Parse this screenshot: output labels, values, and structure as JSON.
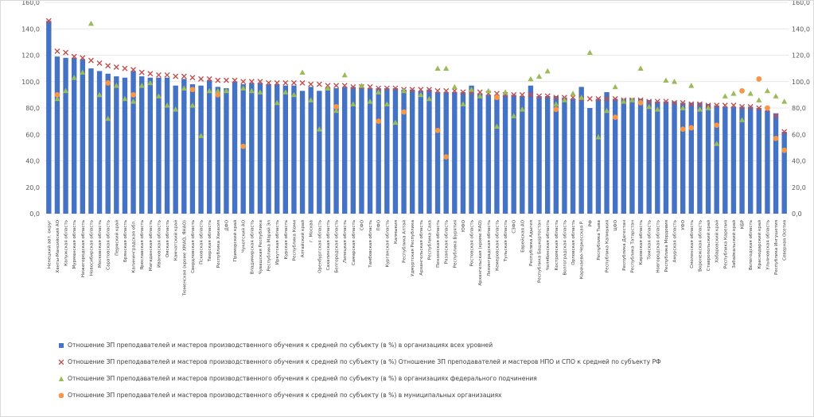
{
  "chart_data": {
    "type": "bar",
    "categories": [
      "Ненецкий авт. округ",
      "Ханты-Мансийский АО",
      "Калужская область",
      "Мурманская область",
      "Нижегородская область",
      "Новосибирская область",
      "Московская область",
      "Саратовская область",
      "Пермский край",
      "Брянская область",
      "Калининградская обл.",
      "Ярославская область",
      "Магаданская область",
      "Ивановская область",
      "Омская область",
      "Камчатский край",
      "Тюменская (кроме ХМАО, ЯНАО)",
      "Свердловская область",
      "Псковская область",
      "Тверская область",
      "Республика Хакасия",
      "ДФО",
      "Приморский край",
      "Чукотский АО",
      "Владимирская область",
      "Чувашская Республика",
      "Республика Марий Эл",
      "Иркутская область",
      "Курская область",
      "Республика Коми",
      "Алтайский край",
      "г. Москва",
      "Оренбургская область",
      "Сахалинская область",
      "Белгородская область",
      "Липецкая область",
      "Самарская область",
      "СФО",
      "Тамбовская область",
      "ПФО",
      "Курганская область",
      "Калмыкия",
      "Республика Алтай",
      "Удмуртская Республика",
      "Архангельская область",
      "Республика Саха",
      "Пензенская область",
      "Рязанская область",
      "Республика Бурятия",
      "ЮФО",
      "Ростовская область",
      "Архангельская (кроме НАО)",
      "Ленинградская область",
      "Кемеровская область",
      "Тульская область",
      "СЗФО",
      "Еврейская АО",
      "Республика Адыгея",
      "Республика Башкортостан",
      "Челябинская область",
      "Костромская область",
      "Волгоградская область",
      "Орловская область",
      "Карачаево-Черкесская Р.",
      "РФ",
      "Республика Тыва",
      "Республика Калмыкия",
      "ЦФО",
      "Республика Дагестан",
      "Республика Татарстан",
      "Кировская область",
      "Томская область",
      "Новгородская область",
      "Республика Мордовия",
      "Амурская область",
      "УФО",
      "Смоленская область",
      "Воронежская область",
      "Ставропольский край",
      "Хабаровский край",
      "Республика Карелия",
      "Забайкальский край",
      "КБР",
      "Вологодская область",
      "Краснодарский край",
      "Ульяновская область",
      "Республика Ингушетия",
      "Северная Осетия"
    ],
    "series": [
      {
        "name": "Отношение ЗП преподавателей и мастеров производственного обучения к средней по субъекту (в %) в организациях всех уровней",
        "type": "bar",
        "color": "#4472c4",
        "values": [
          146,
          119,
          118,
          118,
          117,
          110,
          108,
          106,
          104,
          103,
          108,
          104,
          103,
          103,
          103,
          97,
          102,
          98,
          97,
          101,
          96,
          95,
          100,
          98,
          99,
          99,
          98,
          98,
          97,
          97,
          93,
          96,
          93,
          95,
          95,
          96,
          96,
          96,
          95,
          95,
          95,
          95,
          94,
          94,
          93,
          94,
          92,
          92,
          92,
          92,
          97,
          91,
          90,
          90,
          90,
          90,
          89,
          97,
          89,
          89,
          89,
          88,
          87,
          96,
          80,
          87,
          92,
          87,
          87,
          87,
          87,
          86,
          85,
          85,
          85,
          84,
          84,
          84,
          83,
          82,
          81,
          81,
          81,
          81,
          80,
          78,
          76,
          62
        ]
      },
      {
        "name": "Отношение ЗП преподавателей и мастеров производственного обучения к средней по субъекту (в %) Отношение ЗП преподавателей и мастеров НПО и СПО к средней по субъекту РФ",
        "type": "cross",
        "color": "#c0504d",
        "values": [
          146,
          123,
          122,
          119,
          118,
          116,
          114,
          112,
          111,
          110,
          109,
          107,
          106,
          105,
          105,
          104,
          104,
          103,
          102,
          102,
          101,
          101,
          101,
          100,
          100,
          100,
          99,
          99,
          99,
          99,
          99,
          98,
          98,
          97,
          97,
          97,
          96,
          96,
          96,
          95,
          95,
          95,
          94,
          94,
          94,
          94,
          93,
          93,
          93,
          92,
          92,
          92,
          91,
          91,
          90,
          90,
          90,
          90,
          89,
          89,
          88,
          88,
          88,
          87,
          87,
          87,
          87,
          87,
          86,
          86,
          86,
          85,
          85,
          85,
          84,
          84,
          83,
          83,
          82,
          82,
          82,
          82,
          81,
          81,
          80,
          79,
          74,
          62
        ]
      },
      {
        "name": "Отношение ЗП преподавателей и мастеров производственного обучения к средней по субъекту (в %) в организациях федерального подчинения",
        "type": "triangle",
        "color": "#9bbb59",
        "values": [
          null,
          87,
          93,
          103,
          107,
          144,
          90,
          72,
          97,
          87,
          85,
          97,
          99,
          89,
          82,
          79,
          95,
          82,
          59,
          93,
          93,
          93,
          null,
          95,
          93,
          92,
          null,
          84,
          92,
          90,
          107,
          86,
          64,
          95,
          78,
          105,
          83,
          97,
          85,
          92,
          83,
          69,
          93,
          null,
          90,
          87,
          110,
          110,
          96,
          83,
          94,
          89,
          93,
          66,
          92,
          74,
          79,
          102,
          104,
          108,
          83,
          86,
          91,
          88,
          122,
          58,
          78,
          96,
          85,
          86,
          110,
          81,
          79,
          101,
          100,
          80,
          97,
          79,
          80,
          53,
          89,
          91,
          71,
          91,
          86,
          93,
          89,
          85
        ]
      },
      {
        "name": "Отношение ЗП преподавателей и мастеров производственного обучения к средней по субъекту (в %) в муниципальных организациях",
        "type": "circle",
        "color": "#f79646",
        "values": [
          null,
          90,
          null,
          null,
          null,
          null,
          null,
          99,
          null,
          null,
          90,
          null,
          null,
          null,
          null,
          null,
          null,
          94,
          null,
          null,
          90,
          null,
          null,
          51,
          null,
          null,
          null,
          null,
          null,
          null,
          null,
          null,
          null,
          null,
          81,
          null,
          null,
          null,
          null,
          70,
          null,
          null,
          77,
          null,
          null,
          null,
          63,
          43,
          null,
          null,
          null,
          null,
          null,
          88,
          null,
          null,
          null,
          null,
          null,
          null,
          79,
          null,
          null,
          null,
          null,
          null,
          null,
          73,
          null,
          null,
          84,
          null,
          null,
          null,
          null,
          64,
          65,
          null,
          null,
          67,
          null,
          null,
          93,
          null,
          102,
          80,
          57,
          48
        ]
      }
    ],
    "ylim": [
      0,
      160
    ],
    "yticks": [
      {
        "value": 0,
        "label": "0,0"
      },
      {
        "value": 20,
        "label": "20,0"
      },
      {
        "value": 40,
        "label": "40,0"
      },
      {
        "value": 60,
        "label": "60,0"
      },
      {
        "value": 80,
        "label": "80,0"
      },
      {
        "value": 100,
        "label": "100,0"
      },
      {
        "value": 120,
        "label": "120,0"
      },
      {
        "value": 140,
        "label": "140,0"
      },
      {
        "value": 160,
        "label": "160,0"
      }
    ],
    "grid": true
  }
}
